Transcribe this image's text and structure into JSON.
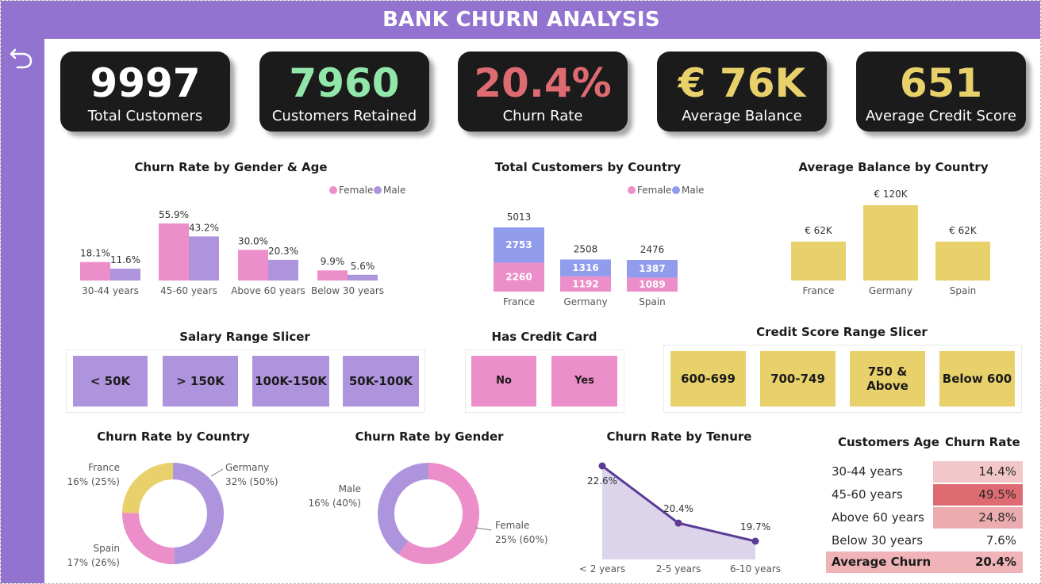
{
  "header": {
    "title": "BANK CHURN ANALYSIS"
  },
  "colors": {
    "purple": "#9273cf",
    "female": "#ec8ec9",
    "male": "#ae94dc",
    "male_blue": "#919cec",
    "gold": "#e8d06a",
    "green": "#91e6a9",
    "red": "#de6b71"
  },
  "kpis": [
    {
      "value": "9997",
      "label": "Total Customers",
      "color": "#ffffff"
    },
    {
      "value": "7960",
      "label": "Customers Retained",
      "color": "#91e6a9"
    },
    {
      "value": "20.4%",
      "label": "Churn Rate",
      "color": "#de6b71"
    },
    {
      "value": "€ 76K",
      "label": "Average Balance",
      "color": "#e8d06a"
    },
    {
      "value": "651",
      "label": "Average Credit Score",
      "color": "#e8d06a"
    }
  ],
  "slicers": {
    "salary": {
      "title": "Salary Range Slicer",
      "options": [
        "< 50K",
        "> 150K",
        "100K-150K",
        "50K-100K"
      ]
    },
    "credit_card": {
      "title": "Has Credit Card",
      "options": [
        "No",
        "Yes"
      ]
    },
    "credit_score": {
      "title": "Credit Score Range Slicer",
      "options": [
        "600-699",
        "700-749",
        "750 & Above",
        "Below 600"
      ]
    }
  },
  "age_table": {
    "headers": [
      "Customers Age",
      "Churn Rate"
    ],
    "rows": [
      {
        "age": "30-44 years",
        "rate": "14.4%",
        "value": 14.4
      },
      {
        "age": "45-60 years",
        "rate": "49.5%",
        "value": 49.5
      },
      {
        "age": "Above 60 years",
        "rate": "24.8%",
        "value": 24.8
      },
      {
        "age": "Below 30 years",
        "rate": "7.6%",
        "value": 7.6
      }
    ],
    "total": {
      "label": "Average Churn",
      "rate": "20.4%"
    }
  },
  "chart_data": [
    {
      "id": "gender_age",
      "type": "bar",
      "title": "Churn Rate by Gender & Age",
      "categories": [
        "30-44 years",
        "45-60 years",
        "Above 60 years",
        "Below 30 years"
      ],
      "series": [
        {
          "name": "Female",
          "values": [
            18.1,
            55.9,
            30.0,
            9.9
          ],
          "labels": [
            "18.1%",
            "55.9%",
            "30.0%",
            "9.9%"
          ],
          "color": "#ec8ec9"
        },
        {
          "name": "Male",
          "values": [
            11.6,
            43.2,
            20.3,
            5.6
          ],
          "labels": [
            "11.6%",
            "43.2%",
            "20.3%",
            "5.6%"
          ],
          "color": "#ae94dc"
        }
      ],
      "legend": "top-right"
    },
    {
      "id": "customers_country",
      "type": "bar",
      "stacked": true,
      "title": "Total Customers by Country",
      "categories": [
        "France",
        "Germany",
        "Spain"
      ],
      "series": [
        {
          "name": "Female",
          "values": [
            2260,
            1192,
            1089
          ],
          "color": "#ec8ec9"
        },
        {
          "name": "Male",
          "values": [
            2753,
            1316,
            1387
          ],
          "color": "#919cec"
        }
      ],
      "totals": [
        5013,
        2508,
        2476
      ],
      "legend": "top-right"
    },
    {
      "id": "balance_country",
      "type": "bar",
      "title": "Average Balance by Country",
      "categories": [
        "France",
        "Germany",
        "Spain"
      ],
      "values": [
        62,
        120,
        62
      ],
      "labels": [
        "€ 62K",
        "€ 120K",
        "€ 62K"
      ],
      "color": "#e8d06a"
    },
    {
      "id": "churn_country",
      "type": "pie",
      "donut": true,
      "title": "Churn Rate by Country",
      "slices": [
        {
          "label": "Germany",
          "detail": "32% (50%)",
          "value": 50,
          "color": "#ae94dc"
        },
        {
          "label": "Spain",
          "detail": "17% (26%)",
          "value": 26,
          "color": "#ec8ec9"
        },
        {
          "label": "France",
          "detail": "16% (25%)",
          "value": 25,
          "color": "#e8d06a"
        }
      ]
    },
    {
      "id": "churn_gender",
      "type": "pie",
      "donut": true,
      "title": "Churn Rate by Gender",
      "slices": [
        {
          "label": "Female",
          "detail": "25% (60%)",
          "value": 60,
          "color": "#ec8ec9"
        },
        {
          "label": "Male",
          "detail": "16% (40%)",
          "value": 40,
          "color": "#ae94dc"
        }
      ]
    },
    {
      "id": "churn_tenure",
      "type": "area",
      "title": "Churn Rate by Tenure",
      "categories": [
        "< 2 years",
        "2-5 years",
        "6-10 years"
      ],
      "values": [
        22.6,
        20.4,
        19.7
      ],
      "labels": [
        "22.6%",
        "20.4%",
        "19.7%"
      ],
      "color": "#5b3b96",
      "fill": "#dcd4ea"
    }
  ]
}
